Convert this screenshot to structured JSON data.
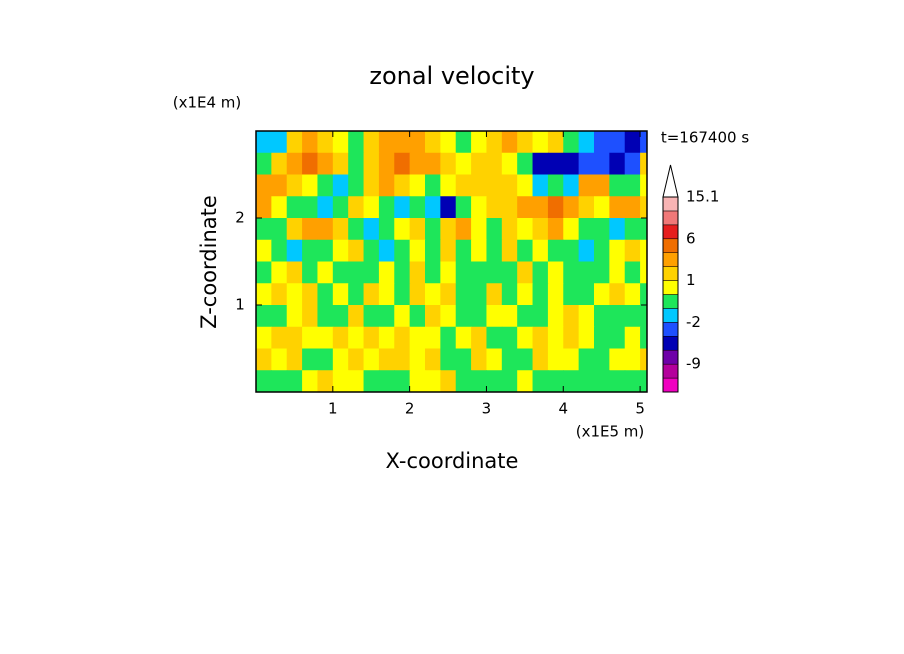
{
  "chart_data": {
    "type": "contour",
    "title": "zonal velocity",
    "x_label": "X-coordinate",
    "y_label": "Z-coordinate",
    "x_unit": "(x1E5 m)",
    "y_unit": "(x1E4 m)",
    "time_label": "t=167400 s",
    "xlim": [
      0,
      5.09
    ],
    "ylim": [
      0,
      3.0
    ],
    "xticks": [
      1,
      2,
      3,
      4,
      5
    ],
    "yticks": [
      1,
      2
    ],
    "x": [
      0.1,
      0.3,
      0.5,
      0.7,
      0.9,
      1.1,
      1.3,
      1.5,
      1.7,
      1.9,
      2.1,
      2.3,
      2.5,
      2.7,
      2.9,
      3.1,
      3.3,
      3.5,
      3.7,
      3.9,
      4.1,
      4.3,
      4.5,
      4.7,
      4.9,
      5.1
    ],
    "z": [
      2.875,
      2.625,
      2.375,
      2.125,
      1.875,
      1.625,
      1.375,
      1.125,
      0.875,
      0.625,
      0.375,
      0.125
    ],
    "values": [
      [
        -2,
        -1.5,
        1,
        2,
        1,
        0.5,
        -1,
        1,
        3,
        3,
        2,
        1,
        0.5,
        -0.5,
        0.5,
        1.5,
        2,
        1,
        0.5,
        1,
        -1,
        -2,
        -3,
        -3,
        -5,
        -3
      ],
      [
        -1,
        1,
        3,
        5,
        3,
        1,
        -0.5,
        1,
        2,
        5,
        3,
        3,
        1,
        0.5,
        1,
        1,
        0.5,
        -1,
        -5,
        -6,
        -5,
        -4,
        -3,
        -6,
        -4,
        1
      ],
      [
        2,
        3,
        1,
        0.5,
        -0.5,
        -1.5,
        -0.5,
        1,
        2,
        1,
        0.5,
        -0.5,
        0.5,
        1,
        1,
        1.5,
        1,
        0.5,
        -2,
        -1,
        -2,
        2,
        3,
        -1,
        -1,
        0.5
      ],
      [
        3,
        0.5,
        -0.5,
        -1,
        -2,
        -1,
        1,
        0.5,
        -0.5,
        -2,
        -1,
        -2,
        -5,
        -1,
        0.5,
        1,
        1.5,
        2,
        3,
        4,
        2,
        1,
        0.5,
        2,
        3,
        1
      ],
      [
        -1,
        -0.5,
        1,
        2,
        3,
        1,
        -0.5,
        -2,
        -1,
        0.5,
        1,
        -0.5,
        1,
        2,
        0.5,
        -0.5,
        1,
        0.5,
        1,
        2,
        0.5,
        -0.5,
        -1,
        -1.5,
        -0.5,
        -1
      ],
      [
        0.5,
        -0.5,
        -2,
        -1,
        -0.5,
        0.5,
        1,
        -0.5,
        -2,
        -1,
        0.5,
        -0.5,
        1,
        -0.5,
        0.5,
        -0.5,
        1,
        -0.5,
        0.5,
        -0.5,
        -1,
        -2,
        -1,
        0.5,
        1,
        0.5
      ],
      [
        -0.5,
        0.5,
        1,
        -0.5,
        0.5,
        -1,
        -0.5,
        -1,
        0.5,
        -0.5,
        1,
        -0.5,
        0.5,
        -0.5,
        -1,
        -0.5,
        -0.5,
        1,
        -0.5,
        0.5,
        -0.5,
        -1,
        -0.5,
        0.5,
        -0.5,
        0.5
      ],
      [
        0.5,
        1,
        0.5,
        1,
        -0.5,
        0.5,
        -0.5,
        1,
        0.5,
        -0.5,
        1,
        0.5,
        1,
        -0.5,
        -1,
        1,
        -0.5,
        0.5,
        -0.5,
        0.5,
        -0.5,
        -0.5,
        0.5,
        1,
        0.5,
        -0.5
      ],
      [
        -0.5,
        -0.5,
        0.5,
        1,
        -0.5,
        -0.5,
        1,
        -0.5,
        -0.5,
        0.5,
        -0.5,
        1,
        0.5,
        -0.5,
        -0.5,
        0.5,
        0.5,
        -0.5,
        -0.5,
        0.5,
        1,
        0.5,
        -0.5,
        -0.5,
        -0.5,
        -1
      ],
      [
        0.5,
        1,
        1,
        0.5,
        0.5,
        1,
        0.5,
        1,
        0.5,
        1,
        0.5,
        0.5,
        -0.5,
        0.5,
        1,
        -0.5,
        -0.5,
        0.5,
        1,
        0.5,
        1,
        0.5,
        -0.5,
        -0.5,
        0.5,
        -0.5
      ],
      [
        1,
        0.5,
        1,
        -0.5,
        -0.5,
        0.5,
        1,
        0.5,
        1,
        1,
        0.5,
        1,
        -0.5,
        -0.5,
        1,
        0.5,
        -0.5,
        -0.5,
        1,
        0.5,
        0.5,
        -0.5,
        -0.5,
        0.5,
        0.5,
        1
      ],
      [
        -0.5,
        -0.5,
        -0.5,
        0.5,
        1,
        0.5,
        0.5,
        -0.5,
        -0.5,
        -0.5,
        0.5,
        0.5,
        1,
        -0.5,
        -0.5,
        -0.5,
        -0.5,
        0.5,
        -0.5,
        -0.5,
        -0.5,
        -0.5,
        -0.5,
        -0.5,
        -0.5,
        -0.5
      ]
    ],
    "levels": [
      -15,
      -12,
      -9,
      -6,
      -4,
      -2,
      -1,
      0,
      1,
      2,
      4,
      6,
      9,
      12,
      15.1
    ],
    "colors": [
      "#f000c0",
      "#b4009c",
      "#6e00a8",
      "#0000b4",
      "#1e50ff",
      "#00c8ff",
      "#1ee65a",
      "#ffff00",
      "#ffd200",
      "#ffa000",
      "#f06e00",
      "#e61e1e",
      "#f07878",
      "#f8b4b4"
    ],
    "colorbar_ticks": [
      15.1,
      6,
      1,
      -2,
      -9
    ]
  }
}
